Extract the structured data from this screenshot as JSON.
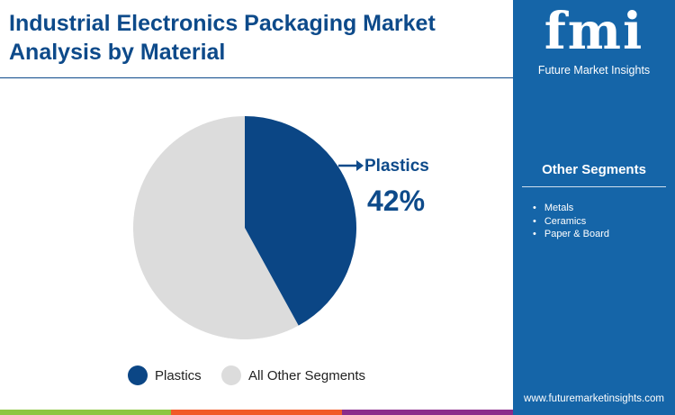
{
  "title": "Industrial Electronics Packaging Market Analysis by Material",
  "brand": {
    "logo": "fmi",
    "name": "Future Market Insights",
    "url": "www.futuremarketinsights.com"
  },
  "sidebar": {
    "heading": "Other Segments",
    "items": [
      "Metals",
      "Ceramics",
      "Paper & Board"
    ]
  },
  "colors": {
    "primary": "#0b4685",
    "other": "#dcdcdc",
    "sidebar": "#1565a8"
  },
  "chart_data": {
    "type": "pie",
    "title": "Industrial Electronics Packaging Market Analysis by Material",
    "slices": [
      {
        "name": "Plastics",
        "value": 42
      },
      {
        "name": "All Other Segments",
        "value": 58
      }
    ],
    "annotation": {
      "label": "Plastics",
      "value": "42%"
    },
    "legend": "bottom"
  }
}
